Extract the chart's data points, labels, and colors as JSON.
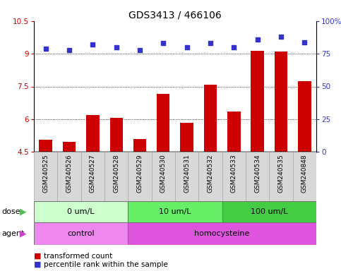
{
  "title": "GDS3413 / 466106",
  "samples": [
    "GSM240525",
    "GSM240526",
    "GSM240527",
    "GSM240528",
    "GSM240529",
    "GSM240530",
    "GSM240531",
    "GSM240532",
    "GSM240533",
    "GSM240534",
    "GSM240535",
    "GSM240848"
  ],
  "transformed_count": [
    5.05,
    4.95,
    6.2,
    6.05,
    5.1,
    7.15,
    5.82,
    7.58,
    6.35,
    9.15,
    9.12,
    7.75
  ],
  "percentile_rank": [
    79,
    78,
    82,
    80,
    78,
    83,
    80,
    83,
    80,
    86,
    88,
    84
  ],
  "ylim_left": [
    4.5,
    10.5
  ],
  "ylim_right": [
    0,
    100
  ],
  "yticks_left": [
    4.5,
    6.0,
    7.5,
    9.0,
    10.5
  ],
  "yticks_right": [
    0,
    25,
    50,
    75,
    100
  ],
  "ytick_labels_left": [
    "4.5",
    "6",
    "7.5",
    "9",
    "10.5"
  ],
  "ytick_labels_right": [
    "0",
    "25",
    "50",
    "75",
    "100%"
  ],
  "bar_color": "#cc0000",
  "dot_color": "#3333cc",
  "background_color": "#ffffff",
  "dose_groups": [
    {
      "label": "0 um/L",
      "start": 0,
      "end": 4,
      "color": "#ccffcc"
    },
    {
      "label": "10 um/L",
      "start": 4,
      "end": 8,
      "color": "#66ee66"
    },
    {
      "label": "100 um/L",
      "start": 8,
      "end": 12,
      "color": "#44cc44"
    }
  ],
  "agent_groups": [
    {
      "label": "control",
      "start": 0,
      "end": 4,
      "color": "#ee88ee"
    },
    {
      "label": "homocysteine",
      "start": 4,
      "end": 12,
      "color": "#dd55dd"
    }
  ],
  "dose_label": "dose",
  "agent_label": "agent",
  "legend_bar_label": "transformed count",
  "legend_dot_label": "percentile rank within the sample",
  "title_fontsize": 10,
  "tick_fontsize": 7.5,
  "sample_fontsize": 6.5,
  "row_fontsize": 8,
  "legend_fontsize": 7.5
}
